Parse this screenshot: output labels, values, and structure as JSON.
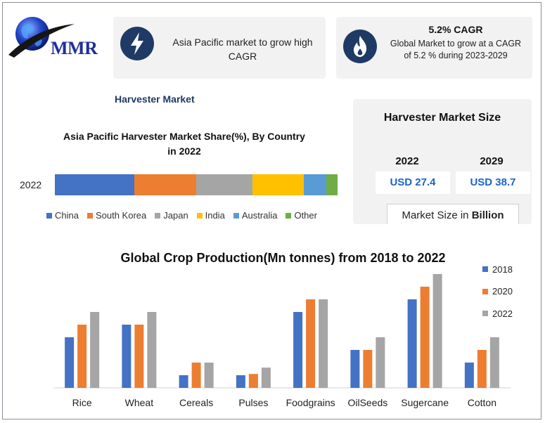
{
  "logo": {
    "text": "MMR"
  },
  "card1": {
    "text": "Asia Pacific market to grow high CAGR",
    "icon": "lightning-icon"
  },
  "card2": {
    "title": "5.2% CAGR",
    "text": "Global Market to grow at a CAGR of 5.2 % during 2023-2029",
    "icon": "flame-icon"
  },
  "section_title": "Harvester Market",
  "market_size": {
    "title": "Harvester Market Size",
    "years": [
      "2022",
      "2029"
    ],
    "values": [
      "USD 27.4",
      "USD 38.7"
    ],
    "unit_prefix": "Market Size in",
    "unit_bold": "Billion"
  },
  "colors": {
    "navy": "#1f3a64",
    "blue": "#4472c4",
    "orange": "#ed7d31",
    "gray": "#a5a5a5",
    "yellow": "#ffc000",
    "lightblue": "#5b9bd5",
    "green": "#70ad47",
    "value_blue": "#1e63c8"
  },
  "chart_data": [
    {
      "type": "bar",
      "orientation": "horizontal-stacked",
      "title": "Asia Pacific Harvester Market Share(%), By Country in 2022",
      "categories": [
        "2022"
      ],
      "series": [
        {
          "name": "China",
          "values": [
            28
          ],
          "color": "#4472c4"
        },
        {
          "name": "South Korea",
          "values": [
            22
          ],
          "color": "#ed7d31"
        },
        {
          "name": "Japan",
          "values": [
            20
          ],
          "color": "#a5a5a5"
        },
        {
          "name": "India",
          "values": [
            18
          ],
          "color": "#ffc000"
        },
        {
          "name": "Australia",
          "values": [
            8
          ],
          "color": "#5b9bd5"
        },
        {
          "name": "Other",
          "values": [
            4
          ],
          "color": "#70ad47"
        }
      ],
      "xlim": [
        0,
        100
      ],
      "legend": "bottom",
      "grid": false
    },
    {
      "type": "bar",
      "title": "Global Crop Production(Mn tonnes) from 2018 to 2022",
      "categories": [
        "Rice",
        "Wheat",
        "Cereals",
        "Pulses",
        "Foodgrains",
        "OilSeeds",
        "Sugercane",
        "Cotton"
      ],
      "series": [
        {
          "name": "2018",
          "values": [
            40,
            50,
            10,
            10,
            60,
            30,
            70,
            20
          ],
          "color": "#4472c4"
        },
        {
          "name": "2020",
          "values": [
            50,
            50,
            20,
            11,
            70,
            30,
            80,
            30
          ],
          "color": "#ed7d31"
        },
        {
          "name": "2022",
          "values": [
            60,
            60,
            20,
            16,
            70,
            40,
            90,
            40
          ],
          "color": "#a5a5a5"
        }
      ],
      "ylim": [
        0,
        100
      ],
      "legend": "right",
      "grid": false
    }
  ]
}
